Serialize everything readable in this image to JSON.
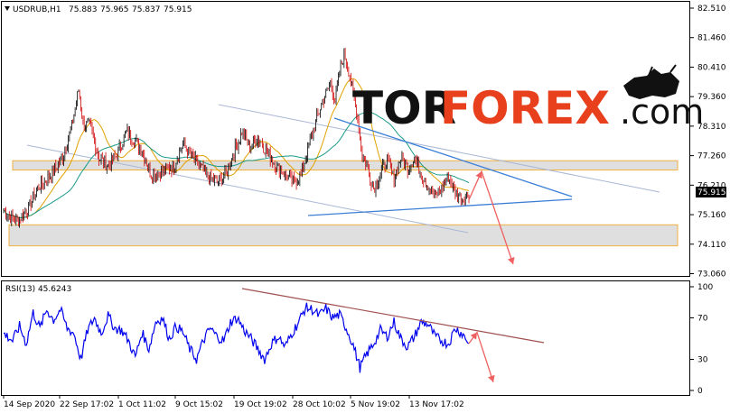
{
  "chart_data": [
    {
      "type": "candlestick",
      "header": {
        "symbol": "USDRUB,H1",
        "ohlc": [
          "75.883",
          "75.965",
          "75.837",
          "75.915"
        ]
      },
      "ylim": [
        73.06,
        82.51
      ],
      "yticks": [
        "82.510",
        "81.460",
        "80.410",
        "79.360",
        "78.310",
        "77.260",
        "76.210",
        "75.160",
        "74.110",
        "73.060"
      ],
      "current_price": "75.915",
      "xticks": [
        "14 Sep 2020",
        "22 Sep 17:02",
        "1 Oct 11:02",
        "9 Oct 15:02",
        "19 Oct 19:02",
        "28 Oct 10:02",
        "5 Nov 19:02",
        "13 Nov 17:02"
      ],
      "price_path": [
        [
          0,
          75.3
        ],
        [
          12,
          74.9
        ],
        [
          22,
          75.4
        ],
        [
          30,
          76.1
        ],
        [
          42,
          76.6
        ],
        [
          52,
          77.2
        ],
        [
          60,
          78.3
        ],
        [
          66,
          79.6
        ],
        [
          70,
          78.4
        ],
        [
          76,
          78.3
        ],
        [
          84,
          77.2
        ],
        [
          92,
          76.9
        ],
        [
          100,
          77.3
        ],
        [
          108,
          78.1
        ],
        [
          114,
          77.9
        ],
        [
          122,
          77.4
        ],
        [
          130,
          76.6
        ],
        [
          140,
          76.7
        ],
        [
          150,
          76.9
        ],
        [
          158,
          77.7
        ],
        [
          164,
          77.3
        ],
        [
          172,
          76.9
        ],
        [
          180,
          76.5
        ],
        [
          188,
          76.3
        ],
        [
          196,
          76.6
        ],
        [
          204,
          77.5
        ],
        [
          210,
          78.1
        ],
        [
          216,
          77.6
        ],
        [
          224,
          77.9
        ],
        [
          232,
          77.4
        ],
        [
          240,
          76.9
        ],
        [
          248,
          76.6
        ],
        [
          256,
          76.3
        ],
        [
          262,
          76.6
        ],
        [
          268,
          77.5
        ],
        [
          276,
          78.6
        ],
        [
          282,
          79.3
        ],
        [
          288,
          79.8
        ],
        [
          292,
          79.3
        ],
        [
          296,
          80.2
        ],
        [
          300,
          80.9
        ],
        [
          304,
          80.3
        ],
        [
          308,
          79.5
        ],
        [
          312,
          78.6
        ],
        [
          316,
          77.3
        ],
        [
          320,
          76.9
        ],
        [
          326,
          76.1
        ],
        [
          332,
          76.6
        ],
        [
          338,
          77.1
        ],
        [
          344,
          76.4
        ],
        [
          350,
          77.2
        ],
        [
          356,
          76.8
        ],
        [
          362,
          77.2
        ],
        [
          368,
          76.6
        ],
        [
          374,
          76.2
        ],
        [
          380,
          75.8
        ],
        [
          386,
          76.1
        ],
        [
          392,
          76.5
        ],
        [
          398,
          76.0
        ],
        [
          404,
          75.7
        ],
        [
          410,
          75.9
        ]
      ],
      "sr_zones": [
        [
          76.75,
          77.08
        ],
        [
          74.05,
          74.8
        ]
      ],
      "forecast": [
        "76.7",
        "73.4"
      ]
    },
    {
      "type": "line",
      "header": "RSI(13) 45.6243",
      "ylim": [
        0,
        100
      ],
      "yticks": [
        "100",
        "70",
        "30",
        "0"
      ],
      "rsi_path": [
        [
          0,
          55
        ],
        [
          8,
          48
        ],
        [
          14,
          62
        ],
        [
          20,
          45
        ],
        [
          26,
          75
        ],
        [
          32,
          60
        ],
        [
          38,
          78
        ],
        [
          44,
          68
        ],
        [
          50,
          78
        ],
        [
          56,
          60
        ],
        [
          62,
          55
        ],
        [
          68,
          30
        ],
        [
          74,
          58
        ],
        [
          80,
          70
        ],
        [
          86,
          55
        ],
        [
          92,
          72
        ],
        [
          98,
          60
        ],
        [
          104,
          58
        ],
        [
          110,
          48
        ],
        [
          116,
          32
        ],
        [
          122,
          56
        ],
        [
          128,
          40
        ],
        [
          134,
          66
        ],
        [
          140,
          70
        ],
        [
          146,
          50
        ],
        [
          152,
          62
        ],
        [
          158,
          56
        ],
        [
          164,
          40
        ],
        [
          170,
          30
        ],
        [
          176,
          48
        ],
        [
          182,
          60
        ],
        [
          188,
          52
        ],
        [
          194,
          48
        ],
        [
          200,
          66
        ],
        [
          206,
          70
        ],
        [
          212,
          58
        ],
        [
          218,
          50
        ],
        [
          224,
          40
        ],
        [
          230,
          30
        ],
        [
          236,
          45
        ],
        [
          242,
          52
        ],
        [
          248,
          42
        ],
        [
          254,
          55
        ],
        [
          260,
          66
        ],
        [
          266,
          80
        ],
        [
          272,
          78
        ],
        [
          278,
          72
        ],
        [
          284,
          79
        ],
        [
          290,
          70
        ],
        [
          296,
          73
        ],
        [
          302,
          60
        ],
        [
          308,
          44
        ],
        [
          314,
          22
        ],
        [
          320,
          35
        ],
        [
          326,
          45
        ],
        [
          332,
          58
        ],
        [
          338,
          52
        ],
        [
          344,
          66
        ],
        [
          350,
          50
        ],
        [
          356,
          42
        ],
        [
          362,
          52
        ],
        [
          368,
          66
        ],
        [
          374,
          64
        ],
        [
          380,
          52
        ],
        [
          386,
          48
        ],
        [
          392,
          45
        ],
        [
          398,
          60
        ],
        [
          404,
          55
        ],
        [
          410,
          46
        ]
      ],
      "forecast": [
        "56",
        "8"
      ]
    }
  ],
  "logo": {
    "part1": "TOR",
    "part2": "FOREX",
    "part3": ".com"
  },
  "colors": {
    "bull": "#000000",
    "bear": "#d00000",
    "ma_fast": "#e0a000",
    "ma_slow": "#1a9a8a",
    "trend": "#3b7fd6",
    "channel": "#a9b7d6",
    "rsi": "#0000ee",
    "zone_fill": "#d9d9d9",
    "zone_border": "#f0b040",
    "arrow": "#f06060"
  }
}
